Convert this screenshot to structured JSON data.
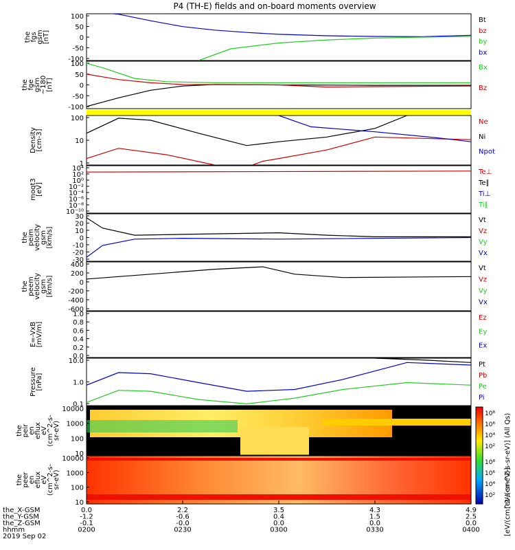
{
  "title": "P4 (TH-E) fields and on-board moments overview",
  "chart_data": [
    {
      "type": "line",
      "panel": "fgs",
      "ylabel": [
        "the",
        "fgs",
        "gsm",
        "[nT]"
      ],
      "ylim": [
        -100,
        100
      ],
      "yticks": [
        "100",
        "50",
        "0",
        "-50",
        "-100"
      ],
      "legend": [
        {
          "name": "Bt",
          "color": "#000000"
        },
        {
          "name": "bz",
          "color": "#cc0000"
        },
        {
          "name": "by",
          "color": "#22cc22"
        },
        {
          "name": "bx",
          "color": "#0000cc"
        }
      ],
      "series": [
        {
          "name": "bx",
          "x": [
            "02:00",
            "02:10",
            "02:20",
            "02:30",
            "02:40",
            "02:50",
            "03:00",
            "03:15",
            "03:30",
            "03:45",
            "04:00"
          ],
          "values": [
            155,
            98,
            70,
            45,
            30,
            20,
            12,
            6,
            3,
            2,
            8
          ]
        },
        {
          "name": "by",
          "x": [
            "02:00",
            "02:30",
            "02:35",
            "02:45",
            "03:00",
            "03:15",
            "03:30",
            "03:45",
            "04:00"
          ],
          "values": [
            null,
            null,
            -100,
            -50,
            -25,
            -12,
            -4,
            0,
            3
          ]
        }
      ]
    },
    {
      "type": "line",
      "panel": "fge",
      "ylabel": [
        "the",
        "fge",
        "gsm",
        "~180",
        "[nT]"
      ],
      "ylim": [
        -120,
        100
      ],
      "yticks": [
        "100",
        "50",
        "0",
        "-50",
        "-100"
      ],
      "legend": [
        {
          "name": "Bx",
          "color": "#22cc22"
        },
        {
          "name": "Bz",
          "color": "#cc0000"
        }
      ],
      "series": [
        {
          "name": "black",
          "x": [
            "02:00",
            "02:10",
            "02:20",
            "02:30",
            "02:40",
            "03:00",
            "03:30",
            "04:00"
          ],
          "values": [
            -110,
            -70,
            -35,
            -15,
            -8,
            -10,
            -12,
            -12
          ]
        },
        {
          "name": "Bz",
          "x": [
            "02:00",
            "02:10",
            "02:20",
            "02:30",
            "03:00",
            "03:15",
            "03:30",
            "04:00"
          ],
          "values": [
            40,
            15,
            0,
            -8,
            -10,
            -20,
            -18,
            -15
          ]
        },
        {
          "name": "Bx",
          "x": [
            "02:00",
            "02:05",
            "02:15",
            "02:25",
            "02:40",
            "03:00",
            "04:00"
          ],
          "values": [
            90,
            70,
            20,
            5,
            0,
            0,
            0
          ]
        }
      ]
    },
    {
      "type": "line",
      "panel": "density",
      "ylabel": [
        "Density",
        "[cm-3]"
      ],
      "yscale": "log",
      "ylim": [
        1,
        200
      ],
      "yticks": [
        "100",
        "10",
        "1"
      ],
      "legend": [
        {
          "name": "Ne",
          "color": "#cc0000"
        },
        {
          "name": "Ni",
          "color": "#000000"
        },
        {
          "name": "Npot",
          "color": "#0000cc"
        }
      ],
      "series": [
        {
          "name": "Ni",
          "x": [
            "02:00",
            "02:10",
            "02:20",
            "02:35",
            "02:50",
            "03:00",
            "03:15",
            "03:30",
            "03:40"
          ],
          "values": [
            30,
            150,
            120,
            30,
            8,
            12,
            20,
            50,
            200
          ]
        },
        {
          "name": "Ne",
          "x": [
            "02:00",
            "02:10",
            "02:25",
            "02:40",
            "02:50",
            "02:55",
            "03:00",
            "03:15",
            "03:30",
            "04:00"
          ],
          "values": [
            2,
            6,
            3,
            1,
            0.8,
            1.5,
            2,
            5,
            20,
            15
          ]
        },
        {
          "name": "Npot",
          "x": [
            "03:00",
            "03:10",
            "03:30",
            "03:50",
            "04:00"
          ],
          "values": [
            200,
            60,
            35,
            18,
            12
          ]
        }
      ]
    },
    {
      "type": "line",
      "panel": "moqt3",
      "ylabel": [
        "moqt3",
        "[eV]"
      ],
      "yscale": "log",
      "yticks": [
        "10⁴",
        "10²",
        "10⁰",
        "10⁻²",
        "10⁻⁴",
        "10⁻⁶",
        "10⁻⁸",
        "10⁻¹⁰"
      ],
      "legend": [
        {
          "name": "Te⊥",
          "color": "#cc0000"
        },
        {
          "name": "Te∥",
          "color": "#000000"
        },
        {
          "name": "Ti⊥",
          "color": "#0000cc"
        },
        {
          "name": "Ti∥",
          "color": "#22cc22"
        }
      ],
      "series": [
        {
          "name": "level",
          "x": [
            "02:00",
            "04:00"
          ],
          "values": [
            1000,
            2000
          ]
        }
      ]
    },
    {
      "type": "line",
      "panel": "peim",
      "ylabel": [
        "the",
        "peim",
        "velocity",
        "gsm",
        "[km/s]"
      ],
      "ylim": [
        -30,
        30
      ],
      "yticks": [
        "30",
        "20",
        "10",
        "0",
        "-10",
        "-20",
        "-30"
      ],
      "legend": [
        {
          "name": "Vt",
          "color": "#000000"
        },
        {
          "name": "Vz",
          "color": "#cc0000"
        },
        {
          "name": "Vy",
          "color": "#22cc22"
        },
        {
          "name": "Vx",
          "color": "#0000cc"
        }
      ],
      "series": [
        {
          "name": "Vt",
          "x": [
            "02:00",
            "02:05",
            "02:15",
            "02:30",
            "03:00",
            "03:15",
            "03:30",
            "04:00"
          ],
          "values": [
            25,
            12,
            3,
            4,
            6,
            3,
            1,
            1
          ]
        },
        {
          "name": "Vx",
          "x": [
            "02:00",
            "02:05",
            "02:15",
            "02:30",
            "03:00",
            "04:00"
          ],
          "values": [
            -25,
            -10,
            -2,
            -1,
            -2,
            0
          ]
        }
      ]
    },
    {
      "type": "line",
      "panel": "peem",
      "ylabel": [
        "the",
        "peem",
        "velocity",
        "gsm",
        "[km/s]"
      ],
      "ylim": [
        -600,
        400
      ],
      "yticks": [
        "400",
        "200",
        "0",
        "-200",
        "-400",
        "-600"
      ],
      "legend": [
        {
          "name": "Vt",
          "color": "#000000"
        },
        {
          "name": "Vz",
          "color": "#cc0000"
        },
        {
          "name": "Vy",
          "color": "#22cc22"
        },
        {
          "name": "Vx",
          "color": "#0000cc"
        }
      ],
      "series": [
        {
          "name": "Vt",
          "x": [
            "02:00",
            "02:20",
            "02:40",
            "02:55",
            "03:05",
            "03:20",
            "04:00"
          ],
          "values": [
            50,
            150,
            250,
            300,
            150,
            80,
            100
          ]
        }
      ]
    },
    {
      "type": "line",
      "panel": "efield",
      "ylabel": [
        "E=-VxB",
        "[mV/m]"
      ],
      "ylim": [
        0,
        1
      ],
      "yticks": [
        "1.0",
        "0.8",
        "0.6",
        "0.4",
        "0.2",
        "0.0"
      ],
      "legend": [
        {
          "name": "Ez",
          "color": "#cc0000"
        },
        {
          "name": "Ey",
          "color": "#22cc22"
        },
        {
          "name": "Ex",
          "color": "#0000cc"
        }
      ],
      "series": []
    },
    {
      "type": "line",
      "panel": "pressure",
      "ylabel": [
        "Pressure",
        "[nPa]"
      ],
      "yscale": "log",
      "ylim": [
        0.03,
        60
      ],
      "yticks": [
        "10.0",
        "1.0",
        "0.1"
      ],
      "legend": [
        {
          "name": "Pt",
          "color": "#000000"
        },
        {
          "name": "Pb",
          "color": "#cc0000"
        },
        {
          "name": "Pe",
          "color": "#22cc22"
        },
        {
          "name": "Pi",
          "color": "#0000cc"
        }
      ],
      "series": [
        {
          "name": "Pi",
          "x": [
            "02:00",
            "02:10",
            "02:20",
            "02:35",
            "02:50",
            "03:05",
            "03:20",
            "03:40",
            "04:00"
          ],
          "values": [
            0.8,
            6,
            5,
            1.2,
            0.3,
            0.4,
            2,
            30,
            20
          ]
        },
        {
          "name": "Pe",
          "x": [
            "02:00",
            "02:10",
            "02:20",
            "02:35",
            "02:50",
            "03:05",
            "03:20",
            "03:40",
            "04:00"
          ],
          "values": [
            0.05,
            0.35,
            0.3,
            0.08,
            0.04,
            0.1,
            0.4,
            1.2,
            0.8
          ]
        },
        {
          "name": "Pt",
          "x": [
            "03:30",
            "03:45",
            "04:00"
          ],
          "values": [
            60,
            45,
            30
          ]
        }
      ]
    },
    {
      "type": "heatmap",
      "panel": "peir",
      "ylabel": [
        "the",
        "peir",
        "en",
        "eflux",
        "eV",
        "(cm^2-s-",
        "sr-eV)"
      ],
      "yscale": "log",
      "yticks": [
        "10000",
        "1000",
        "100",
        "10"
      ],
      "colorbar": {
        "label": "[eV/(cm^2-s-sr-eV)] (All Qs)",
        "ticks": [
          "10⁸",
          "10⁶",
          "10⁴",
          "10²"
        ]
      }
    },
    {
      "type": "heatmap",
      "panel": "peer",
      "ylabel": [
        "the",
        "peer",
        "en",
        "eflux",
        "eV",
        "(cm^2-s-",
        "sr-eV)"
      ],
      "yscale": "log",
      "yticks": [
        "10000",
        "1000",
        "100",
        "10"
      ],
      "colorbar": {
        "label": "[eV/(cm^2-s-sr-eV)]",
        "ticks": [
          "10⁸",
          "10⁶",
          "10⁴",
          "10²"
        ]
      }
    }
  ],
  "xaxis": {
    "row_labels": [
      "the_X-GSM",
      "the_Y-GSM",
      "the_Z-GSM",
      "hhmm",
      "2019 Sep 02"
    ],
    "columns": [
      [
        "0.0",
        "-1.2",
        "-0.1",
        "0200"
      ],
      [
        "2.2",
        "-0.6",
        "-0.0",
        "0230"
      ],
      [
        "3.5",
        "0.4",
        "0.0",
        "0300"
      ],
      [
        "4.3",
        "1.5",
        "0.0",
        "0330"
      ],
      [
        "4.9",
        "2.5",
        "0.0",
        "0400"
      ]
    ]
  }
}
